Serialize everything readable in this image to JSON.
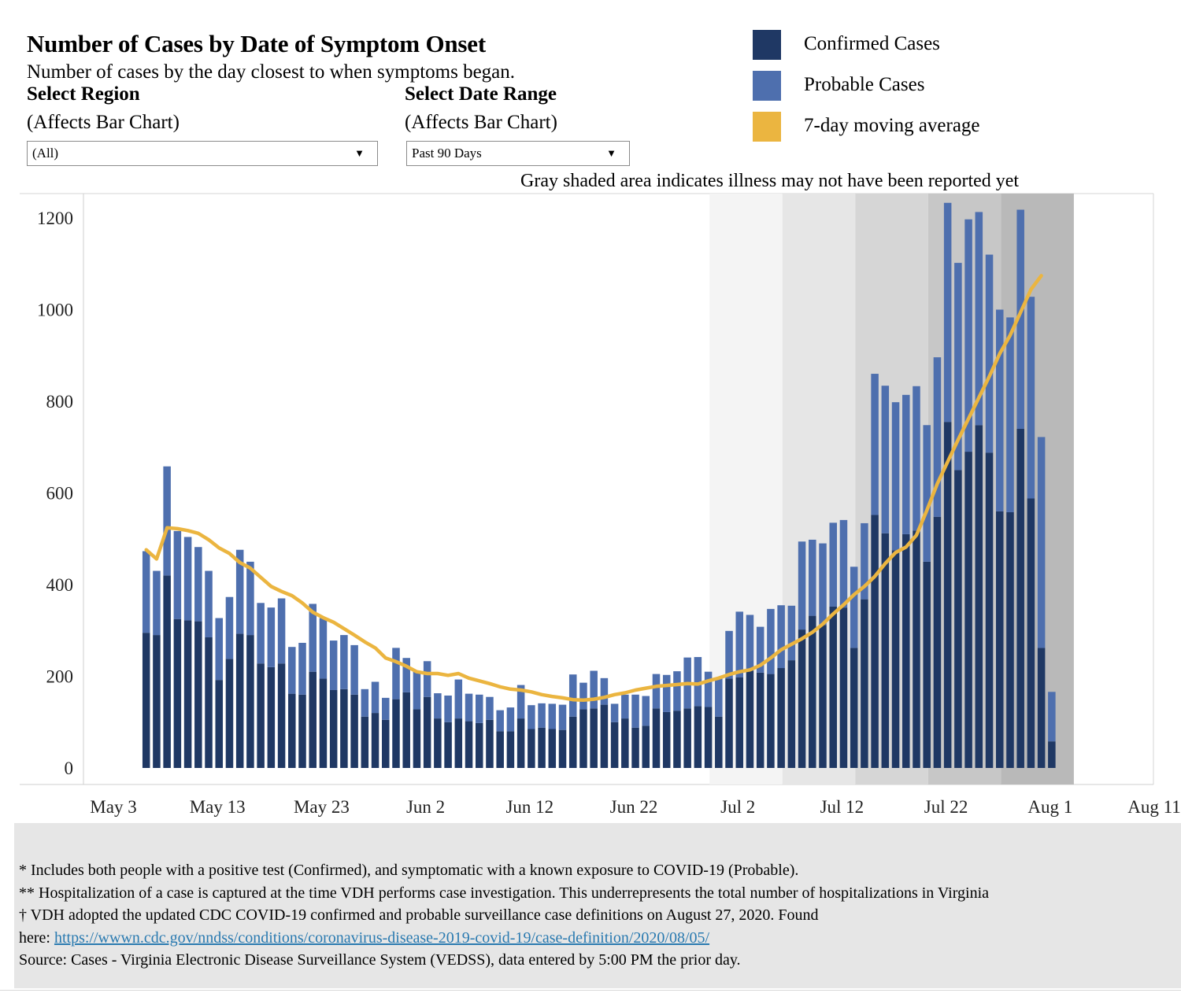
{
  "header": {
    "title": "Number of Cases by Date of Symptom Onset",
    "subtitle": "Number of cases by the day closest to when symptoms began."
  },
  "filters": {
    "region": {
      "label": "Select Region",
      "note": "(Affects Bar Chart)",
      "value": "(All)"
    },
    "date_range": {
      "label": "Select Date Range",
      "note": "(Affects Bar Chart)",
      "value": "Past 90 Days"
    }
  },
  "legend": {
    "confirmed": {
      "label": "Confirmed Cases",
      "color": "#1f3864"
    },
    "probable": {
      "label": "Probable Cases",
      "color": "#4e6fae"
    },
    "average": {
      "label": "7-day moving average",
      "color": "#ebb540"
    }
  },
  "gray_note": "Gray shaded area indicates illness may not have been reported yet",
  "chart_data": {
    "type": "bar",
    "stacked": true,
    "title": "Number of Cases by Date of Symptom Onset",
    "x_ticks": [
      "May 3",
      "May 13",
      "May 23",
      "Jun 2",
      "Jun 12",
      "Jun 22",
      "Jul 2",
      "Jul 12",
      "Jul 22",
      "Aug 1",
      "Aug 11"
    ],
    "y_ticks": [
      "0",
      "200",
      "400",
      "600",
      "800",
      "1000",
      "1200"
    ],
    "ylim": [
      0,
      1300
    ],
    "x_range_days": [
      0,
      100
    ],
    "first_bar_day": 5,
    "bar_day_step": 1,
    "shaded_regions": [
      {
        "from_day": 60,
        "to_day": 67,
        "level": 1
      },
      {
        "from_day": 67,
        "to_day": 74,
        "level": 2
      },
      {
        "from_day": 74,
        "to_day": 81,
        "level": 3
      },
      {
        "from_day": 81,
        "to_day": 88,
        "level": 4
      },
      {
        "from_day": 88,
        "to_day": 95,
        "level": 5
      }
    ],
    "series": [
      {
        "name": "Confirmed Cases",
        "values": [
          295,
          290,
          420,
          325,
          322,
          320,
          285,
          192,
          238,
          293,
          290,
          228,
          220,
          228,
          162,
          160,
          210,
          195,
          170,
          172,
          160,
          112,
          120,
          105,
          150,
          165,
          128,
          155,
          108,
          100,
          108,
          102,
          98,
          105,
          80,
          80,
          108,
          85,
          88,
          85,
          83,
          112,
          128,
          130,
          138,
          100,
          108,
          88,
          92,
          130,
          122,
          125,
          130,
          135,
          133,
          112,
          195,
          198,
          212,
          208,
          205,
          218,
          235,
          302,
          332,
          312,
          352,
          350,
          262,
          368,
          552,
          512,
          475,
          510,
          518,
          450,
          548,
          755,
          650,
          690,
          748,
          688,
          560,
          558,
          740,
          588,
          262,
          58
        ],
        "color": "#1f3864"
      },
      {
        "name": "Probable Cases",
        "values": [
          178,
          140,
          238,
          192,
          182,
          162,
          145,
          135,
          135,
          183,
          160,
          132,
          130,
          142,
          102,
          113,
          148,
          132,
          108,
          118,
          108,
          60,
          68,
          48,
          112,
          75,
          82,
          78,
          55,
          58,
          85,
          60,
          62,
          50,
          46,
          52,
          73,
          52,
          53,
          55,
          55,
          92,
          58,
          82,
          58,
          40,
          52,
          72,
          65,
          75,
          81,
          86,
          111,
          107,
          77,
          84,
          104,
          143,
          122,
          100,
          142,
          137,
          119,
          192,
          166,
          178,
          183,
          191,
          177,
          166,
          308,
          322,
          323,
          304,
          315,
          298,
          348,
          478,
          452,
          507,
          465,
          432,
          440,
          425,
          478,
          440,
          460,
          108
        ],
        "color": "#4e6fae"
      },
      {
        "name": "7-day moving average",
        "type": "line",
        "values": [
          476,
          456,
          524,
          522,
          518,
          512,
          498,
          480,
          468,
          448,
          436,
          416,
          396,
          385,
          376,
          360,
          340,
          328,
          318,
          304,
          290,
          275,
          262,
          240,
          232,
          222,
          210,
          206,
          206,
          202,
          206,
          196,
          190,
          184,
          177,
          172,
          170,
          166,
          160,
          156,
          153,
          149,
          148,
          150,
          154,
          160,
          164,
          170,
          174,
          178,
          180,
          182,
          184,
          183,
          190,
          196,
          204,
          210,
          214,
          224,
          240,
          258,
          270,
          282,
          296,
          314,
          336,
          356,
          378,
          396,
          418,
          446,
          470,
          482,
          508,
          562,
          620,
          668,
          716,
          762,
          808,
          854,
          904,
          944,
          994,
          1044,
          1074,
          null
        ]
      }
    ]
  },
  "footer": {
    "line1": "* Includes both people with a positive test (Confirmed), and symptomatic with a known exposure to COVID-19 (Probable).",
    "line2": "** Hospitalization of a case is captured at the time VDH performs case investigation. This underrepresents the total number of hospitalizations in Virginia",
    "line3": "† VDH adopted the updated CDC COVID-19 confirmed and probable surveillance case definitions on August 27, 2020. Found",
    "line4_prefix": "here: ",
    "link": "https://wwwn.cdc.gov/nndss/conditions/coronavirus-disease-2019-covid-19/case-definition/2020/08/05/",
    "line5": "Source:  Cases - Virginia Electronic Disease Surveillance System (VEDSS), data entered by 5:00 PM the prior day."
  }
}
